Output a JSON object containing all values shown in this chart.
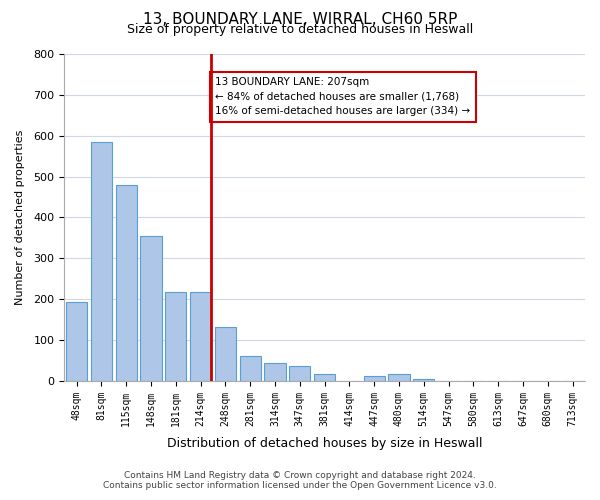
{
  "title_line1": "13, BOUNDARY LANE, WIRRAL, CH60 5RP",
  "title_line2": "Size of property relative to detached houses in Heswall",
  "xlabel": "Distribution of detached houses by size in Heswall",
  "ylabel": "Number of detached properties",
  "bar_color": "#aec6e8",
  "bar_edge_color": "#5a9fd4",
  "background_color": "#ffffff",
  "grid_color": "#d0d8e8",
  "categories": [
    "48sqm",
    "81sqm",
    "115sqm",
    "148sqm",
    "181sqm",
    "214sqm",
    "248sqm",
    "281sqm",
    "314sqm",
    "347sqm",
    "381sqm",
    "414sqm",
    "447sqm",
    "480sqm",
    "514sqm",
    "547sqm",
    "580sqm",
    "613sqm",
    "647sqm",
    "680sqm",
    "713sqm"
  ],
  "values": [
    193,
    585,
    480,
    355,
    218,
    218,
    133,
    60,
    44,
    37,
    16,
    0,
    12,
    17,
    5,
    0,
    0,
    0,
    0,
    0,
    0
  ],
  "ylim": [
    0,
    800
  ],
  "yticks": [
    0,
    100,
    200,
    300,
    400,
    500,
    600,
    700,
    800
  ],
  "property_line_index": 5,
  "property_line_color": "#cc0000",
  "annotation_title": "13 BOUNDARY LANE: 207sqm",
  "annotation_line1": "← 84% of detached houses are smaller (1,768)",
  "annotation_line2": "16% of semi-detached houses are larger (334) →",
  "footer_line1": "Contains HM Land Registry data © Crown copyright and database right 2024.",
  "footer_line2": "Contains public sector information licensed under the Open Government Licence v3.0."
}
